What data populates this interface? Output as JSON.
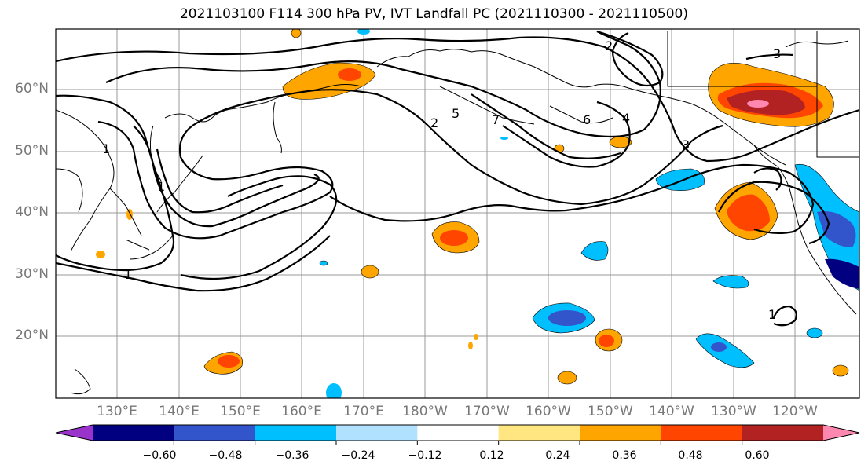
{
  "title": "2021103100 F114 300 hPa PV, IVT Landfall PC (2021110300 - 2021110500)",
  "lat_labels": [
    "60°N",
    "50°N",
    "40°N",
    "30°N",
    "20°N"
  ],
  "lon_labels": [
    "130°E",
    "140°E",
    "150°E",
    "160°E",
    "170°E",
    "180°W",
    "170°W",
    "160°W",
    "150°W",
    "140°W",
    "130°W",
    "120°W"
  ],
  "colorbar": {
    "ticks": [
      "−0.60",
      "−0.48",
      "−0.36",
      "−0.24",
      "−0.12",
      "0.12",
      "0.24",
      "0.36",
      "0.48",
      "0.60"
    ],
    "colors": [
      "#9933cc",
      "#000080",
      "#3355cc",
      "#00bfff",
      "#b0e2ff",
      "#ffffff",
      "#ffe680",
      "#ffa500",
      "#ff4500",
      "#b22222",
      "#ff88b0"
    ]
  },
  "contour_labels": [
    "1",
    "2",
    "3",
    "4",
    "5",
    "6",
    "7"
  ],
  "colors": {
    "contour": "#000000",
    "grid": "#999999",
    "coast": "#000000"
  }
}
